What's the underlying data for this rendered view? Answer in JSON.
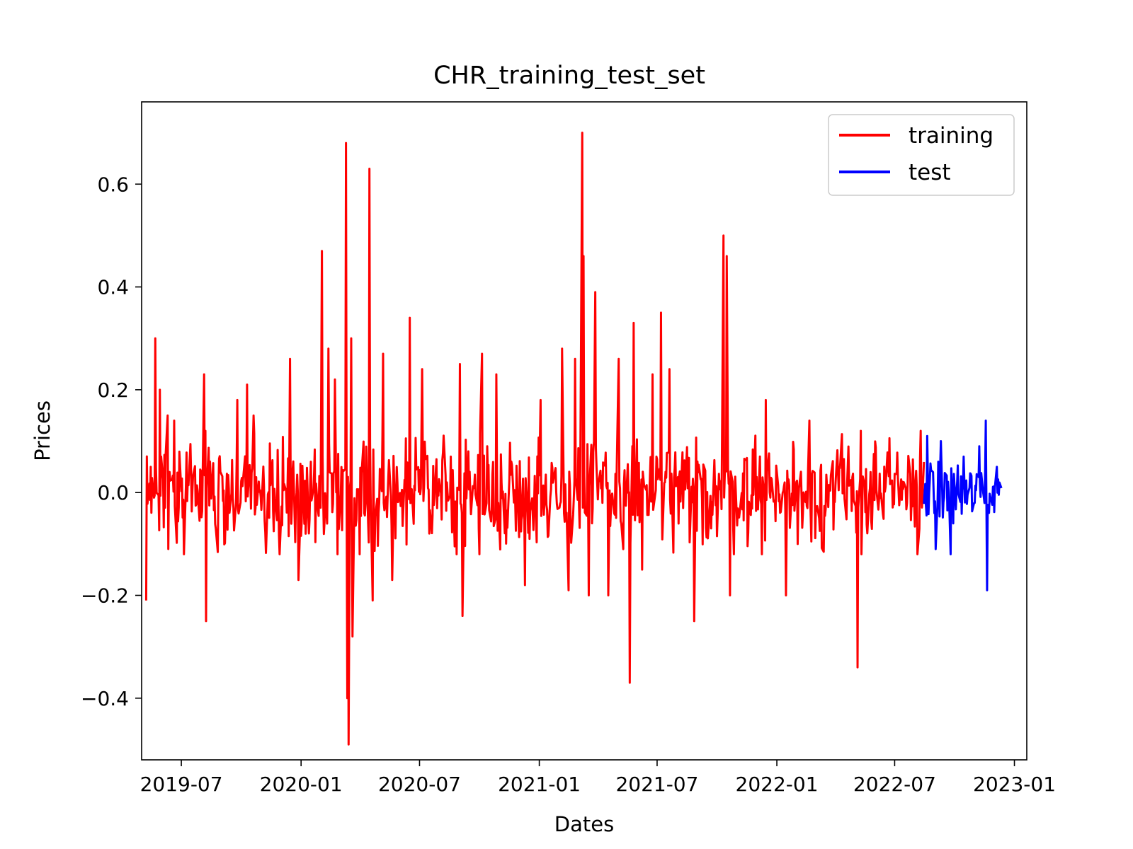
{
  "chart_data": {
    "type": "line",
    "title": "CHR_training_test_set",
    "xlabel": "Dates",
    "ylabel": "Prices",
    "xlim": [
      "2019-05-01",
      "2023-01-20"
    ],
    "ylim": [
      -0.52,
      0.76
    ],
    "x_ticks": [
      "2019-07",
      "2020-01",
      "2020-07",
      "2021-01",
      "2021-07",
      "2022-01",
      "2022-07",
      "2023-01"
    ],
    "y_ticks": [
      -0.4,
      -0.2,
      0.0,
      0.2,
      0.4,
      0.6
    ],
    "y_tick_labels": [
      "−0.4",
      "−0.2",
      "0.0",
      "0.2",
      "0.4",
      "0.6"
    ],
    "grid": false,
    "legend": "upper-right",
    "series": [
      {
        "name": "training",
        "color": "#ff0000",
        "x_start": "2019-05-08",
        "x_end": "2022-08-15",
        "spikes": [
          [
            "2019-05-08",
            -0.21
          ],
          [
            "2019-05-15",
            0.05
          ],
          [
            "2019-05-22",
            0.3
          ],
          [
            "2019-05-29",
            0.2
          ],
          [
            "2019-06-10",
            0.15
          ],
          [
            "2019-06-20",
            0.14
          ],
          [
            "2019-07-05",
            -0.12
          ],
          [
            "2019-08-05",
            0.23
          ],
          [
            "2019-08-08",
            -0.25
          ],
          [
            "2019-09-25",
            0.18
          ],
          [
            "2019-10-10",
            0.21
          ],
          [
            "2019-10-20",
            0.15
          ],
          [
            "2019-12-15",
            0.26
          ],
          [
            "2019-12-28",
            -0.17
          ],
          [
            "2020-01-08",
            -0.08
          ],
          [
            "2020-02-02",
            0.47
          ],
          [
            "2020-02-12",
            0.28
          ],
          [
            "2020-02-22",
            0.22
          ],
          [
            "2020-03-10",
            0.68
          ],
          [
            "2020-03-12",
            -0.4
          ],
          [
            "2020-03-14",
            -0.49
          ],
          [
            "2020-03-18",
            0.3
          ],
          [
            "2020-03-20",
            -0.28
          ],
          [
            "2020-04-15",
            0.63
          ],
          [
            "2020-04-20",
            -0.21
          ],
          [
            "2020-05-06",
            0.27
          ],
          [
            "2020-05-20",
            -0.17
          ],
          [
            "2020-06-16",
            0.34
          ],
          [
            "2020-07-05",
            0.24
          ],
          [
            "2020-09-01",
            0.25
          ],
          [
            "2020-09-05",
            -0.24
          ],
          [
            "2020-10-05",
            0.27
          ],
          [
            "2020-10-27",
            0.23
          ],
          [
            "2020-12-10",
            -0.18
          ],
          [
            "2021-01-03",
            0.18
          ],
          [
            "2021-02-05",
            0.28
          ],
          [
            "2021-02-15",
            -0.19
          ],
          [
            "2021-02-25",
            0.26
          ],
          [
            "2021-03-08",
            0.7
          ],
          [
            "2021-03-10",
            0.46
          ],
          [
            "2021-03-18",
            -0.2
          ],
          [
            "2021-03-28",
            0.39
          ],
          [
            "2021-04-17",
            -0.2
          ],
          [
            "2021-05-03",
            0.26
          ],
          [
            "2021-05-10",
            -0.11
          ],
          [
            "2021-05-20",
            -0.37
          ],
          [
            "2021-05-26",
            0.33
          ],
          [
            "2021-06-08",
            -0.15
          ],
          [
            "2021-06-24",
            0.23
          ],
          [
            "2021-07-07",
            0.35
          ],
          [
            "2021-07-20",
            0.24
          ],
          [
            "2021-08-27",
            -0.25
          ],
          [
            "2021-10-11",
            0.5
          ],
          [
            "2021-10-16",
            0.46
          ],
          [
            "2021-10-21",
            -0.2
          ],
          [
            "2021-12-15",
            0.18
          ],
          [
            "2022-01-15",
            -0.2
          ],
          [
            "2022-02-20",
            0.14
          ],
          [
            "2022-05-05",
            -0.34
          ],
          [
            "2022-05-10",
            0.12
          ],
          [
            "2022-08-10",
            0.12
          ]
        ]
      },
      {
        "name": "test",
        "color": "#0000ff",
        "x_start": "2022-08-15",
        "x_end": "2022-12-12",
        "spikes": [
          [
            "2022-08-20",
            0.11
          ],
          [
            "2022-09-02",
            -0.11
          ],
          [
            "2022-09-10",
            0.1
          ],
          [
            "2022-09-25",
            -0.12
          ],
          [
            "2022-10-15",
            0.07
          ],
          [
            "2022-11-08",
            0.09
          ],
          [
            "2022-11-18",
            0.14
          ],
          [
            "2022-11-20",
            -0.19
          ],
          [
            "2022-12-05",
            0.05
          ]
        ]
      }
    ]
  }
}
